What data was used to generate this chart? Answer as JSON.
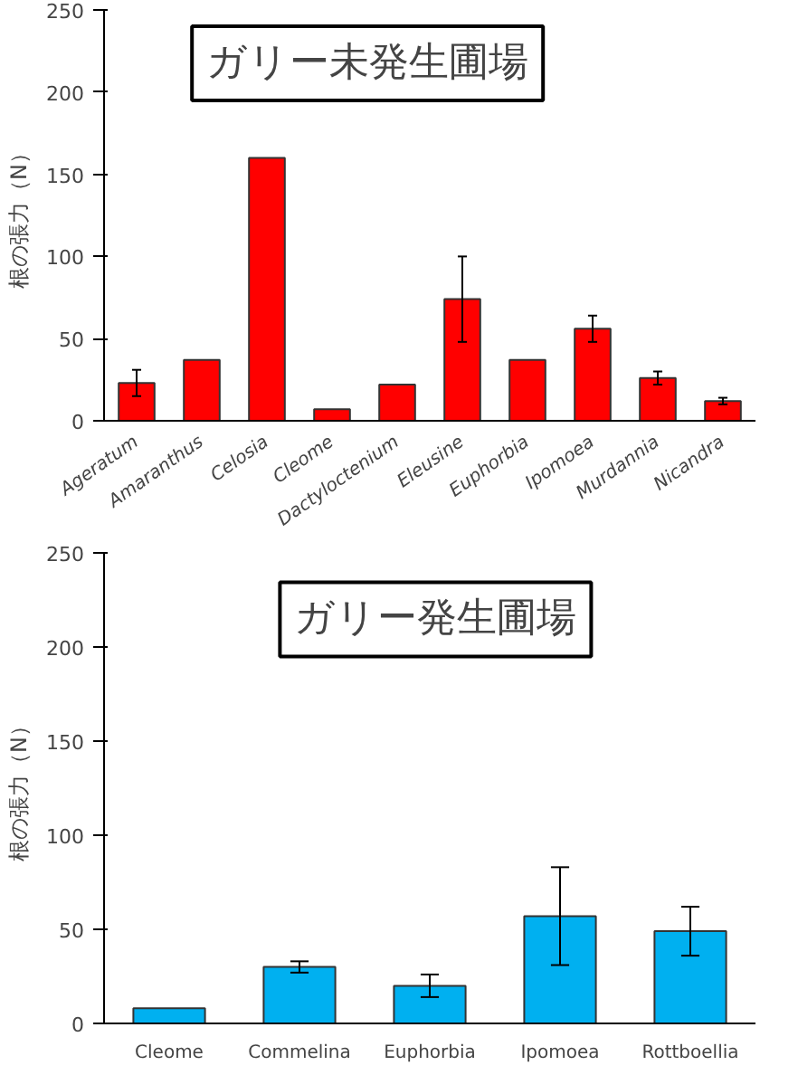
{
  "chart_data": [
    {
      "type": "bar",
      "title": "ガリー未発生圃場",
      "ylabel": "根の張力（N）",
      "categories": [
        "Ageratum",
        "Amaranthus",
        "Celosia",
        "Cleome",
        "Dactyloctenium",
        "Eleusine",
        "Euphorbia",
        "Ipomoea",
        "Murdannia",
        "Nicandra"
      ],
      "values": [
        23,
        37,
        160,
        7,
        22,
        74,
        37,
        56,
        26,
        12
      ],
      "errors": [
        8,
        null,
        null,
        null,
        null,
        26,
        null,
        8,
        4,
        2
      ],
      "color": "#ff0000",
      "ylim": [
        0,
        250
      ],
      "yticks": [
        0,
        50,
        100,
        150,
        200,
        250
      ],
      "grid": false
    },
    {
      "type": "bar",
      "title": "ガリー発生圃場",
      "ylabel": "根の張力（N）",
      "categories": [
        "Cleome",
        "Commelina",
        "Euphorbia",
        "Ipomoea",
        "Rottboellia"
      ],
      "values": [
        8,
        30,
        20,
        57,
        49
      ],
      "errors": [
        null,
        3,
        6,
        26,
        13
      ],
      "color": "#00b0f0",
      "ylim": [
        0,
        250
      ],
      "yticks": [
        0,
        50,
        100,
        150,
        200,
        250
      ],
      "grid": false
    }
  ]
}
